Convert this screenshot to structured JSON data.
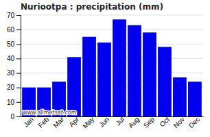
{
  "chart_data": {
    "type": "bar",
    "title": "Nuriootpa : precipitation (mm)",
    "categories": [
      "Jan",
      "Feb",
      "Mar",
      "Apr",
      "May",
      "Jun",
      "Jul",
      "Aug",
      "Sep",
      "Oct",
      "Nov",
      "Dec"
    ],
    "values": [
      20,
      20,
      24,
      41,
      55,
      51,
      67,
      63,
      58,
      48,
      27,
      24
    ],
    "color": "#0000EE",
    "ylim": [
      0,
      70
    ],
    "yticks": [
      0,
      10,
      20,
      30,
      40,
      50,
      60,
      70
    ],
    "grid": true,
    "annotations": [
      "www.allmetsat.com"
    ]
  }
}
